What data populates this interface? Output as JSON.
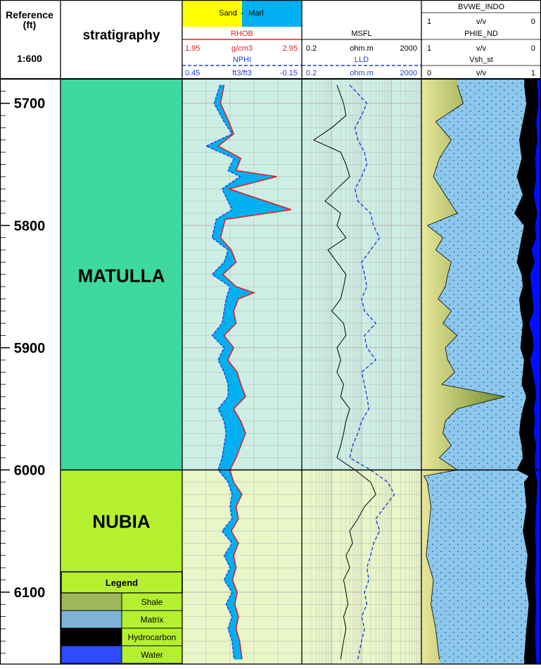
{
  "header": {
    "reference_title": "Reference",
    "reference_unit": "(ft)",
    "scale": "1:600",
    "strat_title": "stratigraphy",
    "lith_legend": {
      "sand": "Sand",
      "sep": "-",
      "marl": "Marl"
    },
    "rhob": {
      "name": "RHOB",
      "left": "1.95",
      "unit": "g/cm3",
      "right": "2.95"
    },
    "nphi": {
      "name": "NPHI",
      "left": "0.45",
      "unit": "ft3/ft3",
      "right": "-0.15"
    },
    "msfl": {
      "name": "MSFL",
      "left": "0.2",
      "unit": "ohm.m",
      "right": "2000"
    },
    "lld": {
      "name": "LLD",
      "left": "0.2",
      "unit": "ohm.m",
      "right": "2000"
    },
    "bvwe": {
      "name": "BVWE_INDO",
      "left": "1",
      "unit": "v/v",
      "right": "0"
    },
    "phie": {
      "name": "PHIE_ND",
      "left": "1",
      "unit": "v/v",
      "right": "0"
    },
    "vsh": {
      "name": "Vsh_st",
      "left": "0",
      "unit": "v/v",
      "right": "1"
    }
  },
  "depth_labels": [
    "5700",
    "5800",
    "5900",
    "6000",
    "6100"
  ],
  "formations": [
    {
      "name": "MATULLA",
      "top": 5680,
      "base": 6000,
      "color": "#3dd9a0"
    },
    {
      "name": "NUBIA",
      "top": 6000,
      "base": 6160,
      "color": "#b5f030"
    }
  ],
  "legend": {
    "title": "Legend",
    "items": [
      {
        "label": "Shale",
        "color": "#9cb85a"
      },
      {
        "label": "Matrix",
        "color": "#7fb4d8"
      },
      {
        "label": "Hydrocarbon",
        "color": "#000000"
      },
      {
        "label": "Water",
        "color": "#2d4cff"
      }
    ]
  },
  "colors": {
    "sand": "#ffff00",
    "marl": "#00b0f0",
    "rhob": "#e02020",
    "nphi": "#1f3fe0",
    "msfl": "#000000",
    "lld": "#1f3fe0",
    "matulla_track_bg": "#cdeee4",
    "nubia_track_bg": "#e8f6c8",
    "matrix": "#8cc8ee",
    "water": "#0010ff",
    "shale": "#c9d27a"
  },
  "chart_data": {
    "type": "line",
    "title": "",
    "y_axis": {
      "label": "Reference (ft)",
      "range": [
        5680,
        6160
      ],
      "reversed": true,
      "major_ticks": [
        5700,
        5800,
        5900,
        6000,
        6100
      ]
    },
    "series": [
      {
        "name": "RHOB",
        "unit": "g/cm3",
        "xlim": [
          1.95,
          2.95
        ],
        "depth": [
          5685,
          5700,
          5715,
          5725,
          5735,
          5745,
          5755,
          5760,
          5770,
          5787,
          5795,
          5810,
          5820,
          5830,
          5840,
          5850,
          5855,
          5860,
          5870,
          5880,
          5890,
          5900,
          5910,
          5920,
          5930,
          5940,
          5950,
          5960,
          5970,
          5980,
          5990,
          6000,
          6010,
          6020,
          6030,
          6040,
          6050,
          6060,
          6070,
          6080,
          6090,
          6100,
          6110,
          6120,
          6130,
          6140,
          6155
        ],
        "values": [
          2.3,
          2.27,
          2.34,
          2.38,
          2.25,
          2.44,
          2.4,
          2.74,
          2.34,
          2.86,
          2.31,
          2.27,
          2.36,
          2.4,
          2.29,
          2.4,
          2.55,
          2.42,
          2.38,
          2.4,
          2.3,
          2.38,
          2.33,
          2.41,
          2.44,
          2.48,
          2.38,
          2.44,
          2.48,
          2.44,
          2.4,
          2.35,
          2.38,
          2.45,
          2.4,
          2.42,
          2.36,
          2.42,
          2.38,
          2.4,
          2.37,
          2.41,
          2.39,
          2.42,
          2.4,
          2.43,
          2.45
        ]
      },
      {
        "name": "NPHI",
        "unit": "ft3/ft3",
        "xlim": [
          0.45,
          -0.15
        ],
        "depth": [
          5685,
          5700,
          5715,
          5725,
          5735,
          5745,
          5755,
          5760,
          5770,
          5787,
          5795,
          5810,
          5820,
          5830,
          5840,
          5850,
          5855,
          5860,
          5870,
          5880,
          5890,
          5900,
          5910,
          5920,
          5930,
          5940,
          5950,
          5960,
          5970,
          5980,
          5990,
          6000,
          6010,
          6020,
          6030,
          6040,
          6050,
          6060,
          6070,
          6080,
          6090,
          6100,
          6110,
          6120,
          6130,
          6140,
          6155
        ],
        "values": [
          0.26,
          0.29,
          0.24,
          0.2,
          0.33,
          0.19,
          0.22,
          0.16,
          0.25,
          0.2,
          0.28,
          0.3,
          0.22,
          0.24,
          0.3,
          0.21,
          0.22,
          0.23,
          0.24,
          0.25,
          0.3,
          0.24,
          0.27,
          0.24,
          0.22,
          0.22,
          0.27,
          0.24,
          0.23,
          0.24,
          0.25,
          0.27,
          0.22,
          0.2,
          0.21,
          0.2,
          0.25,
          0.2,
          0.24,
          0.21,
          0.24,
          0.2,
          0.23,
          0.2,
          0.22,
          0.2,
          0.19
        ]
      },
      {
        "name": "MSFL",
        "unit": "ohm.m",
        "xlim": [
          0.2,
          2000
        ],
        "scale": "log",
        "depth": [
          5685,
          5700,
          5710,
          5720,
          5730,
          5740,
          5750,
          5760,
          5770,
          5780,
          5790,
          5800,
          5810,
          5820,
          5830,
          5840,
          5850,
          5860,
          5870,
          5880,
          5890,
          5900,
          5910,
          5920,
          5930,
          5940,
          5950,
          5960,
          5970,
          5980,
          5990,
          6000,
          6010,
          6020,
          6030,
          6040,
          6050,
          6060,
          6070,
          6080,
          6090,
          6100,
          6110,
          6120,
          6130,
          6140,
          6155
        ],
        "values": [
          3,
          5,
          6,
          2,
          0.5,
          4,
          6,
          8,
          3,
          1.2,
          4,
          3,
          6,
          1.5,
          3,
          6,
          5,
          4,
          2,
          5,
          6,
          3,
          4,
          3,
          5,
          4,
          8,
          6,
          5,
          4,
          3,
          12,
          40,
          60,
          25,
          15,
          8,
          10,
          6,
          8,
          5,
          6,
          7,
          5,
          6,
          5,
          4
        ]
      },
      {
        "name": "LLD",
        "unit": "ohm.m",
        "xlim": [
          0.2,
          2000
        ],
        "scale": "log",
        "depth": [
          5685,
          5700,
          5710,
          5720,
          5730,
          5740,
          5750,
          5760,
          5770,
          5780,
          5790,
          5800,
          5810,
          5820,
          5830,
          5840,
          5850,
          5860,
          5870,
          5880,
          5890,
          5900,
          5910,
          5920,
          5930,
          5940,
          5950,
          5960,
          5970,
          5980,
          5990,
          6000,
          6010,
          6020,
          6030,
          6040,
          6050,
          6060,
          6070,
          6080,
          6090,
          6100,
          6110,
          6120,
          6130,
          6140,
          6155
        ],
        "values": [
          8,
          30,
          20,
          12,
          15,
          25,
          30,
          20,
          12,
          15,
          40,
          50,
          80,
          40,
          20,
          25,
          30,
          20,
          25,
          60,
          25,
          30,
          60,
          20,
          25,
          30,
          35,
          20,
          15,
          10,
          8,
          40,
          150,
          250,
          120,
          60,
          80,
          50,
          40,
          30,
          35,
          25,
          30,
          20,
          25,
          20,
          15
        ]
      },
      {
        "name": "Vsh_st",
        "unit": "v/v",
        "xlim": [
          0,
          1
        ],
        "depth": [
          5685,
          5700,
          5715,
          5730,
          5745,
          5760,
          5775,
          5790,
          5800,
          5810,
          5820,
          5830,
          5840,
          5850,
          5860,
          5870,
          5880,
          5890,
          5900,
          5910,
          5920,
          5930,
          5940,
          5950,
          5960,
          5970,
          5980,
          5990,
          6000,
          6005,
          6010,
          6030,
          6050,
          6070,
          6090,
          6110,
          6130,
          6155
        ],
        "values": [
          0.3,
          0.35,
          0.12,
          0.25,
          0.15,
          0.1,
          0.2,
          0.3,
          0.05,
          0.18,
          0.12,
          0.25,
          0.22,
          0.2,
          0.14,
          0.25,
          0.18,
          0.3,
          0.2,
          0.22,
          0.28,
          0.17,
          0.7,
          0.3,
          0.2,
          0.18,
          0.25,
          0.15,
          0.3,
          0.02,
          0.05,
          0.08,
          0.06,
          0.04,
          0.1,
          0.08,
          0.12,
          0.15
        ]
      },
      {
        "name": "PHIE_ND",
        "unit": "v/v",
        "xlim": [
          1,
          0
        ],
        "depth": [
          5685,
          5700,
          5715,
          5730,
          5745,
          5760,
          5775,
          5790,
          5800,
          5810,
          5820,
          5830,
          5840,
          5850,
          5860,
          5870,
          5880,
          5890,
          5900,
          5910,
          5920,
          5930,
          5940,
          5950,
          5960,
          5970,
          5980,
          5990,
          6000,
          6005,
          6010,
          6030,
          6050,
          6070,
          6090,
          6110,
          6130,
          6155
        ],
        "values": [
          0.14,
          0.12,
          0.15,
          0.18,
          0.16,
          0.2,
          0.15,
          0.22,
          0.14,
          0.16,
          0.18,
          0.2,
          0.16,
          0.15,
          0.18,
          0.17,
          0.15,
          0.16,
          0.17,
          0.14,
          0.15,
          0.16,
          0.12,
          0.15,
          0.17,
          0.18,
          0.16,
          0.15,
          0.2,
          0.1,
          0.14,
          0.12,
          0.15,
          0.11,
          0.13,
          0.1,
          0.12,
          0.14
        ]
      },
      {
        "name": "BVWE_INDO",
        "unit": "v/v",
        "xlim": [
          1,
          0
        ],
        "depth": [
          5685,
          5700,
          5715,
          5730,
          5745,
          5760,
          5775,
          5790,
          5800,
          5810,
          5820,
          5830,
          5840,
          5850,
          5860,
          5870,
          5880,
          5890,
          5900,
          5910,
          5920,
          5930,
          5940,
          5950,
          5960,
          5970,
          5980,
          5990,
          6000,
          6005,
          6010,
          6030,
          6050,
          6070,
          6090,
          6110,
          6130,
          6155
        ],
        "values": [
          0.03,
          0.02,
          0.04,
          0.03,
          0.05,
          0.04,
          0.06,
          0.03,
          0.05,
          0.04,
          0.08,
          0.05,
          0.09,
          0.08,
          0.07,
          0.06,
          0.1,
          0.07,
          0.06,
          0.09,
          0.07,
          0.05,
          0.04,
          0.06,
          0.05,
          0.06,
          0.04,
          0.05,
          0.05,
          0.04,
          0.03,
          0.04,
          0.05,
          0.04,
          0.05,
          0.04,
          0.05,
          0.04
        ]
      }
    ],
    "lithology_fill": {
      "between": [
        "RHOB",
        "NPHI"
      ],
      "labels": [
        "Sand",
        "Marl"
      ]
    },
    "grid": true
  }
}
